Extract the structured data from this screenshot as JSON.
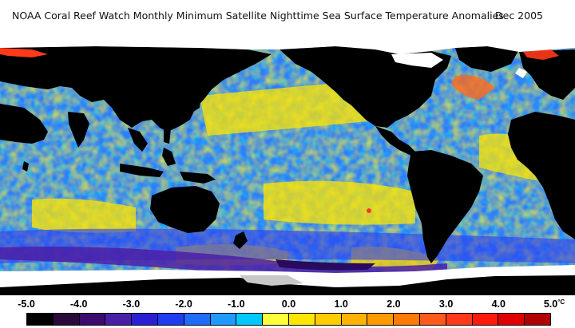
{
  "title": {
    "main": "NOAA Coral Reef Watch Monthly Minimum Satellite Nighttime Sea Surface Temperature Anomalies",
    "date": "Dec 2005"
  },
  "colors": {
    "ocean_cool": "#3a86ff",
    "ocean_mid": "#00c8ff",
    "ocean_warm": "#ffe600",
    "land": "#000000",
    "ice": "#ffffff",
    "sea_ice_gray": "#c8c8c8",
    "cold_anomaly_purple": "#4b1f8f",
    "hot_anomaly_red": "#ff3b1f"
  },
  "legend": {
    "unit": "°C",
    "labels": [
      "-5.0",
      "-4.0",
      "-3.0",
      "-2.0",
      "-1.0",
      "0.0",
      "1.0",
      "2.0",
      "3.0",
      "4.0",
      "5.0"
    ],
    "colorbar": [
      "#000000",
      "#2a0a3a",
      "#3d0a6e",
      "#4a1fa8",
      "#2b1fd6",
      "#1f3cf0",
      "#1f6cf8",
      "#1f9bff",
      "#00c8ff",
      "#ffff3a",
      "#ffe600",
      "#ffcc00",
      "#ffb300",
      "#ff9a00",
      "#ff7a00",
      "#ff5a1a",
      "#ff3a1a",
      "#ff1a0a",
      "#e00000",
      "#b00000"
    ]
  }
}
